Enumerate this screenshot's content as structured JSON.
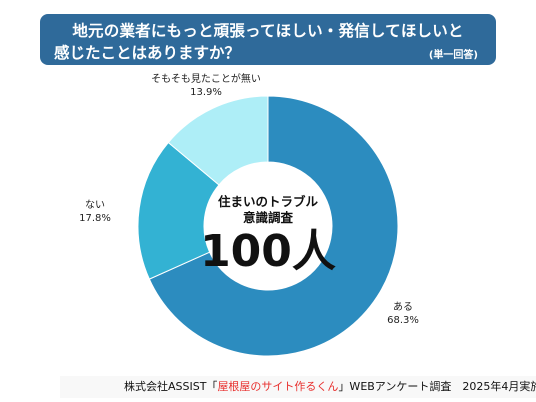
{
  "header": {
    "title_line1": "地元の業者にもっと頑張ってほしい・発信してほしいと",
    "title_line2": "感じたことはありますか？",
    "note": "(単一回答)"
  },
  "center": {
    "line1": "住まいのトラブル",
    "line2": "意識調査",
    "count": "100人"
  },
  "chart_data": {
    "type": "pie",
    "donut": true,
    "categories": [
      "ある",
      "ない",
      "そもそも見たことが無い"
    ],
    "values": [
      68.3,
      17.8,
      13.9
    ],
    "value_labels": [
      "68.3%",
      "17.8%",
      "13.9%"
    ],
    "colors": [
      "#2c8cbf",
      "#33b2d3",
      "#aeeef7"
    ]
  },
  "footer": {
    "prefix": "株式会社ASSIST「",
    "highlight": "屋根屋のサイト作るくん",
    "suffix": "」WEBアンケート調査　2025年4月実施"
  }
}
